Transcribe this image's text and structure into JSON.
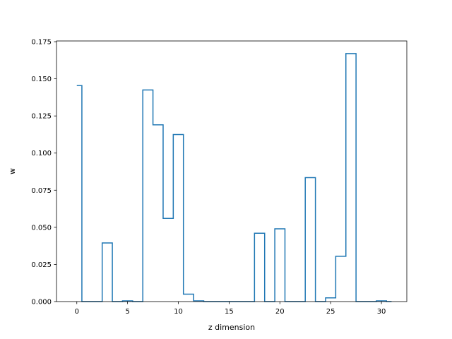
{
  "chart_data": {
    "type": "line",
    "style": "step-mid",
    "title": "",
    "xlabel": "z dimension",
    "ylabel": "w",
    "xlim": [
      -2.0,
      32.5
    ],
    "ylim": [
      0,
      0.1755
    ],
    "grid": false,
    "legend": null,
    "x_ticks": [
      0,
      5,
      10,
      15,
      20,
      25,
      30
    ],
    "x_tick_labels": [
      "0",
      "5",
      "10",
      "15",
      "20",
      "25",
      "30"
    ],
    "y_ticks": [
      0,
      0.025,
      0.05,
      0.075,
      0.1,
      0.125,
      0.15,
      0.175
    ],
    "y_tick_labels": [
      "0.000",
      "0.025",
      "0.050",
      "0.075",
      "0.100",
      "0.125",
      "0.150",
      "0.175"
    ],
    "series": [
      {
        "color": "#1f77b4",
        "x": [
          0,
          1,
          2,
          3,
          4,
          5,
          6,
          7,
          8,
          9,
          10,
          11,
          12,
          13,
          14,
          15,
          16,
          17,
          18,
          19,
          20,
          21,
          22,
          23,
          24,
          25,
          26,
          27,
          28,
          29,
          30,
          31
        ],
        "y": [
          0.1455,
          0,
          0,
          0.0395,
          0,
          0.0005,
          0,
          0.1425,
          0.119,
          0.056,
          0.1125,
          0.005,
          0.0005,
          0,
          0,
          0,
          0,
          0,
          0.046,
          0,
          0.049,
          0,
          0,
          0.0835,
          0,
          0.0025,
          0.0305,
          0.167,
          0,
          0,
          0.0005,
          0
        ]
      }
    ]
  }
}
